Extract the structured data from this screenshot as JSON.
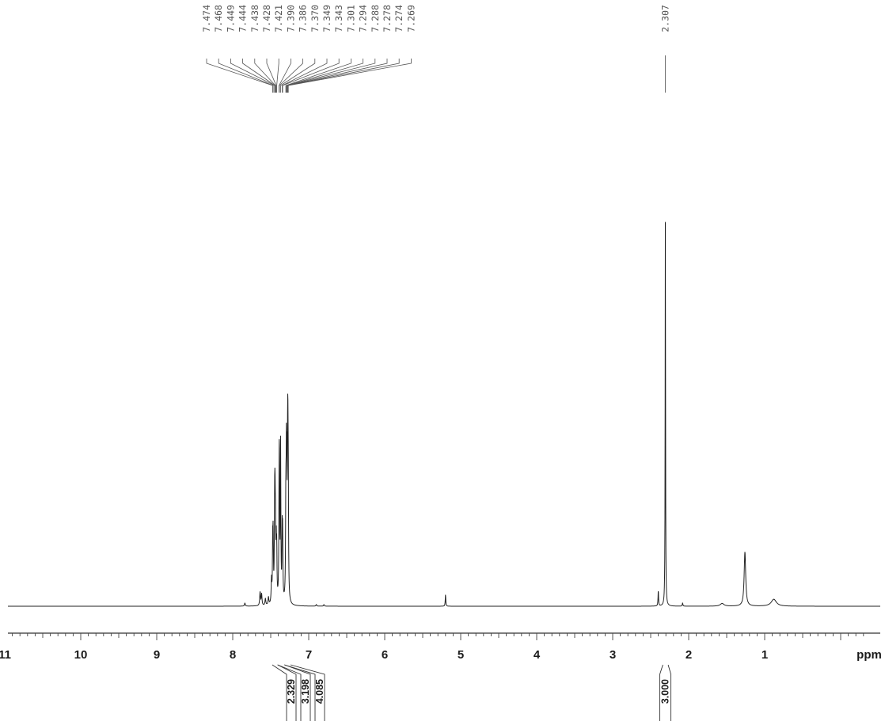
{
  "chart_data": {
    "type": "line",
    "title": "",
    "xlabel": "ppm",
    "ylabel": "",
    "xlim": [
      11.35,
      -0.3
    ],
    "x_reversed": true,
    "grid": false,
    "x_ticks": [
      11,
      10,
      9,
      8,
      7,
      6,
      5,
      4,
      3,
      2,
      1
    ],
    "x_tick_labels": [
      "11",
      "10",
      "9",
      "8",
      "7",
      "6",
      "5",
      "4",
      "3",
      "2",
      "1"
    ],
    "peak_labels": {
      "aromatic_group": [
        "7.474",
        "7.468",
        "7.449",
        "7.444",
        "7.438",
        "7.428",
        "7.421",
        "7.390",
        "7.386",
        "7.370",
        "7.349",
        "7.343",
        "7.301",
        "7.294",
        "7.288",
        "7.278",
        "7.274",
        "7.269"
      ],
      "single": [
        "2.307"
      ]
    },
    "integrals": [
      {
        "value": "2.329",
        "from": 7.48,
        "to": 7.41
      },
      {
        "value": "3.198",
        "from": 7.41,
        "to": 7.32
      },
      {
        "value": "4.085",
        "from": 7.32,
        "to": 7.24
      },
      {
        "value": "3.000",
        "from": 2.34,
        "to": 2.27
      }
    ],
    "peaks": [
      {
        "ppm": 7.84,
        "height": 0.008,
        "width": 0.006
      },
      {
        "ppm": 7.64,
        "height": 0.035,
        "width": 0.006
      },
      {
        "ppm": 7.62,
        "height": 0.03,
        "width": 0.006
      },
      {
        "ppm": 7.57,
        "height": 0.018,
        "width": 0.006
      },
      {
        "ppm": 7.53,
        "height": 0.02,
        "width": 0.006
      },
      {
        "ppm": 7.49,
        "height": 0.06,
        "width": 0.005
      },
      {
        "ppm": 7.474,
        "height": 0.14,
        "width": 0.004
      },
      {
        "ppm": 7.468,
        "height": 0.15,
        "width": 0.004
      },
      {
        "ppm": 7.449,
        "height": 0.2,
        "width": 0.004
      },
      {
        "ppm": 7.444,
        "height": 0.21,
        "width": 0.004
      },
      {
        "ppm": 7.438,
        "height": 0.16,
        "width": 0.004
      },
      {
        "ppm": 7.428,
        "height": 0.13,
        "width": 0.004
      },
      {
        "ppm": 7.421,
        "height": 0.12,
        "width": 0.004
      },
      {
        "ppm": 7.39,
        "height": 0.22,
        "width": 0.004
      },
      {
        "ppm": 7.386,
        "height": 0.28,
        "width": 0.004
      },
      {
        "ppm": 7.37,
        "height": 0.4,
        "width": 0.004
      },
      {
        "ppm": 7.349,
        "height": 0.16,
        "width": 0.004
      },
      {
        "ppm": 7.343,
        "height": 0.15,
        "width": 0.004
      },
      {
        "ppm": 7.301,
        "height": 0.24,
        "width": 0.004
      },
      {
        "ppm": 7.294,
        "height": 0.3,
        "width": 0.004
      },
      {
        "ppm": 7.288,
        "height": 0.26,
        "width": 0.004
      },
      {
        "ppm": 7.278,
        "height": 0.28,
        "width": 0.004
      },
      {
        "ppm": 7.274,
        "height": 0.27,
        "width": 0.004
      },
      {
        "ppm": 7.269,
        "height": 0.24,
        "width": 0.004
      },
      {
        "ppm": 6.9,
        "height": 0.004,
        "width": 0.006
      },
      {
        "ppm": 6.8,
        "height": 0.004,
        "width": 0.006
      },
      {
        "ppm": 5.2,
        "height": 0.03,
        "width": 0.004
      },
      {
        "ppm": 2.4,
        "height": 0.04,
        "width": 0.004
      },
      {
        "ppm": 2.307,
        "height": 1.0,
        "width": 0.003
      },
      {
        "ppm": 2.08,
        "height": 0.008,
        "width": 0.005
      },
      {
        "ppm": 1.56,
        "height": 0.007,
        "width": 0.03
      },
      {
        "ppm": 1.26,
        "height": 0.14,
        "width": 0.012
      },
      {
        "ppm": 0.88,
        "height": 0.018,
        "width": 0.04
      }
    ]
  }
}
